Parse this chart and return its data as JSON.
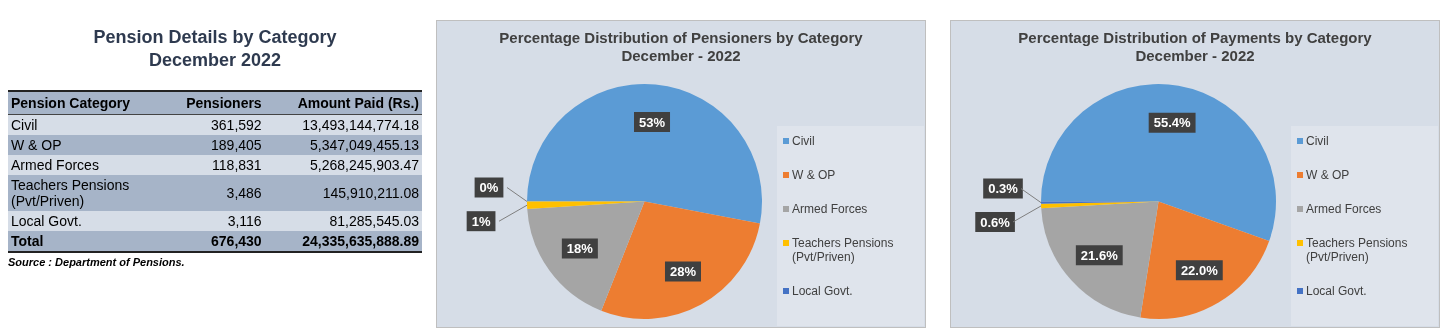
{
  "chart_data": [
    {
      "type": "other",
      "title": "Pension Details by  Category",
      "subtitle": "December 2022",
      "xlabel": "Pension Category",
      "categories": [
        "Civil",
        "W & OP",
        "Armed Forces",
        "Teachers Pensions (Pvt/Priven)",
        "Local Govt.",
        "Total"
      ],
      "series": [
        {
          "name": "Pensioners",
          "values": [
            361592,
            189405,
            118831,
            3486,
            3116,
            676430
          ],
          "value_labels": [
            "361,592",
            "189,405",
            "118,831",
            "3,486",
            "3,116",
            "676,430"
          ],
          "colors": [
            "#d6dde7",
            "#a6b4c8",
            "#d6dde7",
            "#a6b4c8",
            "#d6dde7",
            "#a6b4c8"
          ]
        },
        {
          "name": "Amount Paid (Rs.)",
          "values": [
            13493144774.18,
            5347049455.13,
            5268245903.47,
            145910211.08,
            81285545.03,
            24335635888.89
          ],
          "value_labels": [
            "13,493,144,774.18",
            "5,347,049,455.13",
            "5,268,245,903.47",
            "145,910,211.08",
            "81,285,545.03",
            "24,335,635,888.89"
          ],
          "colors": [
            "#d6dde7",
            "#a6b4c8",
            "#d6dde7",
            "#a6b4c8",
            "#d6dde7",
            "#a6b4c8"
          ]
        }
      ],
      "annotations": [
        "Source : Department of Pensions."
      ]
    },
    {
      "type": "pie",
      "title": "Percentage Distribution of Pensioners by Category",
      "subtitle": "December - 2022",
      "categories": [
        "Civil",
        "W & OP",
        "Armed Forces",
        "Teachers Pensions (Pvt/Priven)",
        "Local Govt."
      ],
      "values": [
        53,
        28,
        18,
        1,
        0
      ],
      "value_labels": [
        "53%",
        "28%",
        "18%",
        "1%",
        "0%"
      ],
      "colors": [
        "#5b9bd5",
        "#ed7d31",
        "#a5a5a5",
        "#ffc000",
        "#4472c4"
      ],
      "legend": "right"
    },
    {
      "type": "pie",
      "title": "Percentage Distribution of  Payments  by Category",
      "subtitle": "December - 2022",
      "categories": [
        "Civil",
        "W & OP",
        "Armed Forces",
        "Teachers Pensions (Pvt/Priven)",
        "Local Govt."
      ],
      "values": [
        55.4,
        22.0,
        21.6,
        0.6,
        0.3
      ],
      "value_labels": [
        "55.4%",
        "22.0%",
        "21.6%",
        "0.6%",
        "0.3%"
      ],
      "colors": [
        "#5b9bd5",
        "#ed7d31",
        "#a5a5a5",
        "#ffc000",
        "#4472c4"
      ],
      "legend": "right"
    }
  ]
}
